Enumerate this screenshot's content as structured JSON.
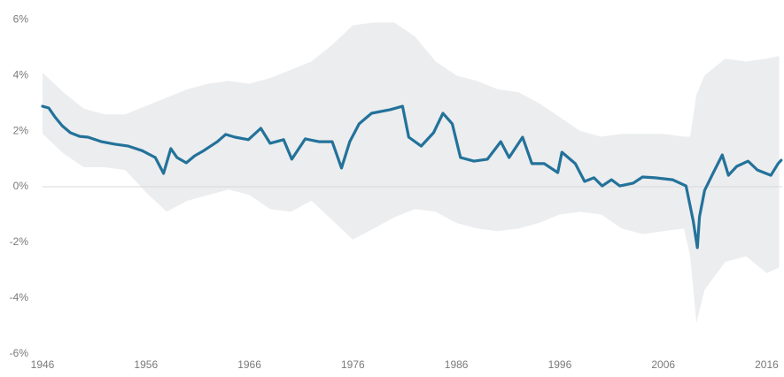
{
  "chart_data": {
    "type": "line",
    "xlim": [
      1946,
      2017.5
    ],
    "ylim": [
      -6,
      6
    ],
    "xticks": [
      1946,
      1956,
      1966,
      1976,
      1986,
      1996,
      2006,
      2016
    ],
    "yticks": [
      {
        "value": 6,
        "label": "6%"
      },
      {
        "value": 4,
        "label": "4%"
      },
      {
        "value": 2,
        "label": "2%"
      },
      {
        "value": 0,
        "label": "0%"
      },
      {
        "value": -2,
        "label": "-2%"
      },
      {
        "value": -4,
        "label": "-4%"
      },
      {
        "value": -6,
        "label": "-6%"
      }
    ],
    "zero_line": true,
    "x": [
      1946.0,
      1946.6,
      1947.2,
      1947.9,
      1948.7,
      1949.6,
      1950.4,
      1951.7,
      1953.0,
      1954.3,
      1955.6,
      1956.9,
      1957.7,
      1958.4,
      1959.0,
      1959.9,
      1960.7,
      1961.6,
      1962.9,
      1963.7,
      1964.6,
      1965.9,
      1967.1,
      1968.0,
      1969.3,
      1970.1,
      1971.4,
      1972.7,
      1974.0,
      1974.9,
      1975.7,
      1976.6,
      1977.8,
      1979.6,
      1980.8,
      1981.4,
      1982.6,
      1983.8,
      1984.7,
      1985.6,
      1986.4,
      1987.7,
      1989.0,
      1990.3,
      1991.1,
      1992.4,
      1993.3,
      1994.5,
      1995.8,
      1996.2,
      1997.5,
      1998.4,
      1999.3,
      2000.1,
      2001.0,
      2001.8,
      2003.1,
      2004.0,
      2005.2,
      2006.9,
      2008.2,
      2008.9,
      2009.3,
      2009.5,
      2010.0,
      2010.8,
      2011.7,
      2012.3,
      2013.1,
      2014.2,
      2015.1,
      2016.4,
      2017.1,
      2017.4
    ],
    "series": [
      {
        "color": "#23729a",
        "values": [
          2.89,
          2.83,
          2.51,
          2.19,
          1.94,
          1.81,
          1.78,
          1.62,
          1.53,
          1.46,
          1.3,
          1.05,
          0.48,
          1.37,
          1.05,
          0.86,
          1.11,
          1.3,
          1.62,
          1.88,
          1.78,
          1.69,
          2.1,
          1.56,
          1.69,
          0.99,
          1.72,
          1.62,
          1.62,
          0.67,
          1.62,
          2.26,
          2.64,
          2.77,
          2.89,
          1.78,
          1.46,
          1.94,
          2.64,
          2.26,
          1.05,
          0.92,
          0.99,
          1.62,
          1.05,
          1.78,
          0.83,
          0.83,
          0.51,
          1.24,
          0.83,
          0.19,
          0.32,
          0.03,
          0.25,
          0.03,
          0.13,
          0.35,
          0.32,
          0.25,
          0.03,
          -1.24,
          -2.19,
          -1.08,
          -0.13,
          0.48,
          1.14,
          0.41,
          0.73,
          0.92,
          0.6,
          0.41,
          0.83,
          0.95
        ]
      }
    ],
    "band": {
      "color": "#ecedef",
      "x": [
        1946,
        1948,
        1950,
        1952,
        1954,
        1956,
        1958,
        1960,
        1962,
        1964,
        1966,
        1968,
        1970,
        1972,
        1974,
        1976,
        1978,
        1980,
        1982,
        1984,
        1986,
        1988,
        1990,
        1992,
        1994,
        1996,
        1998,
        2000,
        2002,
        2004,
        2006,
        2008,
        2008.6,
        2009.2,
        2010,
        2012,
        2014,
        2016,
        2017.2
      ],
      "upper": [
        4.1,
        3.4,
        2.8,
        2.6,
        2.6,
        2.9,
        3.2,
        3.5,
        3.7,
        3.8,
        3.7,
        3.9,
        4.2,
        4.5,
        5.1,
        5.8,
        5.9,
        5.9,
        5.4,
        4.5,
        4.0,
        3.8,
        3.5,
        3.4,
        3.0,
        2.5,
        2.0,
        1.8,
        1.9,
        1.9,
        1.9,
        1.8,
        1.8,
        3.3,
        4.0,
        4.6,
        4.5,
        4.6,
        4.7
      ],
      "lower": [
        1.9,
        1.2,
        0.7,
        0.7,
        0.6,
        -0.2,
        -0.9,
        -0.5,
        -0.3,
        -0.1,
        -0.3,
        -0.8,
        -0.9,
        -0.5,
        -1.2,
        -1.9,
        -1.5,
        -1.1,
        -0.8,
        -0.9,
        -1.3,
        -1.5,
        -1.6,
        -1.5,
        -1.3,
        -1.0,
        -0.9,
        -1.0,
        -1.5,
        -1.7,
        -1.6,
        -1.5,
        -2.5,
        -4.9,
        -3.7,
        -2.7,
        -2.5,
        -3.1,
        -2.9
      ]
    }
  }
}
